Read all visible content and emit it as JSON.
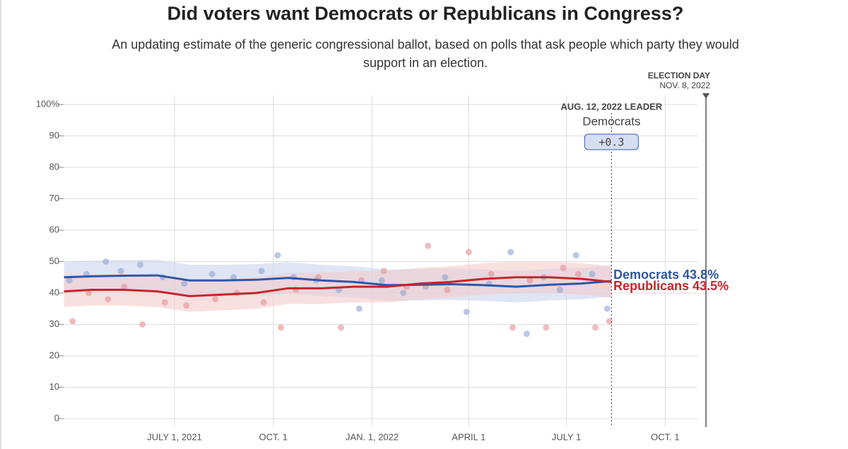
{
  "chart_data": {
    "type": "line",
    "title": "Did voters want Democrats or Republicans in Congress?",
    "subtitle": "An updating estimate of the generic congressional ballot, based on polls that ask people which party they would support in an election.",
    "xlim": [
      "2021-03-20",
      "2022-11-08"
    ],
    "xticks": [
      {
        "value": "2021-07-01",
        "label": "JULY 1, 2021"
      },
      {
        "value": "2021-10-01",
        "label": "OCT. 1"
      },
      {
        "value": "2022-01-01",
        "label": "JAN. 1, 2022"
      },
      {
        "value": "2022-04-01",
        "label": "APRIL 1"
      },
      {
        "value": "2022-07-01",
        "label": "JULY 1"
      },
      {
        "value": "2022-10-01",
        "label": "OCT. 1"
      }
    ],
    "ylim": [
      0,
      100
    ],
    "yticks": [
      0,
      10,
      20,
      30,
      40,
      50,
      60,
      70,
      80,
      90,
      {
        "value": 100,
        "label": "100%"
      }
    ],
    "grid": true,
    "election_day": {
      "title": "ELECTION DAY",
      "date": {
        "value": "2022-11-08",
        "label": "NOV. 8, 2022"
      }
    },
    "leader": {
      "date": "2022-08-12",
      "title": "AUG. 12, 2022 LEADER",
      "party": "Democrats",
      "margin": {
        "value": 0.3,
        "label": "+0.3"
      }
    },
    "x": [
      "2021-03-20",
      "2021-04-15",
      "2021-05-15",
      "2021-06-15",
      "2021-07-15",
      "2021-08-15",
      "2021-09-15",
      "2021-10-15",
      "2021-11-15",
      "2021-12-15",
      "2022-01-15",
      "2022-02-15",
      "2022-03-15",
      "2022-04-15",
      "2022-05-15",
      "2022-06-15",
      "2022-07-15",
      "2022-08-12"
    ],
    "series": [
      {
        "name": "Democrats",
        "color": "#2f56a6",
        "band_color": "#c9d3ec",
        "poll_color": "#8ea3d4",
        "values": [
          45,
          45.3,
          45.5,
          45.6,
          44,
          44,
          44.2,
          44.8,
          44,
          43.5,
          42.5,
          42.6,
          42.8,
          42.5,
          42,
          42.6,
          43,
          43.8
        ],
        "last_label": "43.8%",
        "ci_low": [
          40,
          40.3,
          40.5,
          40.6,
          39,
          39,
          39.2,
          39.8,
          39,
          38.5,
          37.5,
          37.6,
          37.8,
          37.5,
          37,
          37.6,
          38,
          38.8
        ],
        "ci_high": [
          50,
          50.3,
          50.5,
          50.6,
          49,
          49,
          49.2,
          49.8,
          49,
          48.5,
          47.5,
          47.6,
          47.8,
          47.5,
          47,
          47.6,
          48,
          48.8
        ],
        "polls_x": [
          "2021-03-25",
          "2021-04-10",
          "2021-04-28",
          "2021-05-12",
          "2021-05-30",
          "2021-06-20",
          "2021-07-10",
          "2021-08-05",
          "2021-08-25",
          "2021-09-20",
          "2021-10-05",
          "2021-10-20",
          "2021-11-10",
          "2021-12-01",
          "2021-12-20",
          "2022-01-10",
          "2022-01-30",
          "2022-02-20",
          "2022-03-10",
          "2022-03-30",
          "2022-04-20",
          "2022-05-10",
          "2022-05-25",
          "2022-06-10",
          "2022-06-25",
          "2022-07-10",
          "2022-07-25",
          "2022-08-08"
        ],
        "polls": [
          44,
          46,
          50,
          47,
          49,
          45,
          43,
          46,
          45,
          47,
          52,
          45,
          44,
          41,
          35,
          44,
          40,
          42,
          45,
          34,
          43,
          53,
          27,
          45,
          41,
          52,
          46,
          35
        ]
      },
      {
        "name": "Republicans",
        "color": "#c4262c",
        "band_color": "#f3cccd",
        "poll_color": "#e58f92",
        "values": [
          40.5,
          41,
          41,
          40.5,
          39,
          39.5,
          40,
          41.5,
          41.5,
          42,
          42,
          43,
          43.5,
          44.5,
          45,
          45,
          44.5,
          43.5
        ],
        "last_label": "43.5%",
        "ci_low": [
          35.5,
          36,
          36,
          35.5,
          34,
          34.5,
          35,
          36.5,
          36.5,
          37,
          37,
          38,
          38.5,
          39.5,
          40,
          40,
          39.5,
          38.5
        ],
        "ci_high": [
          45.5,
          46,
          46,
          45.5,
          44,
          44.5,
          45,
          46.5,
          46.5,
          47,
          47,
          48,
          48.5,
          49.5,
          50,
          50,
          49.5,
          48.5
        ],
        "polls_x": [
          "2021-03-28",
          "2021-04-12",
          "2021-04-30",
          "2021-05-15",
          "2021-06-01",
          "2021-06-22",
          "2021-07-12",
          "2021-08-08",
          "2021-08-28",
          "2021-09-22",
          "2021-10-08",
          "2021-10-22",
          "2021-11-12",
          "2021-12-03",
          "2021-12-22",
          "2022-01-12",
          "2022-02-02",
          "2022-02-22",
          "2022-03-12",
          "2022-04-01",
          "2022-04-22",
          "2022-05-12",
          "2022-05-28",
          "2022-06-12",
          "2022-06-28",
          "2022-07-12",
          "2022-07-28",
          "2022-08-10"
        ],
        "polls": [
          31,
          40,
          38,
          42,
          30,
          37,
          36,
          38,
          40,
          37,
          29,
          41,
          45,
          29,
          44,
          47,
          42,
          55,
          41,
          53,
          46,
          29,
          44,
          29,
          48,
          46,
          29,
          31
        ]
      }
    ]
  }
}
